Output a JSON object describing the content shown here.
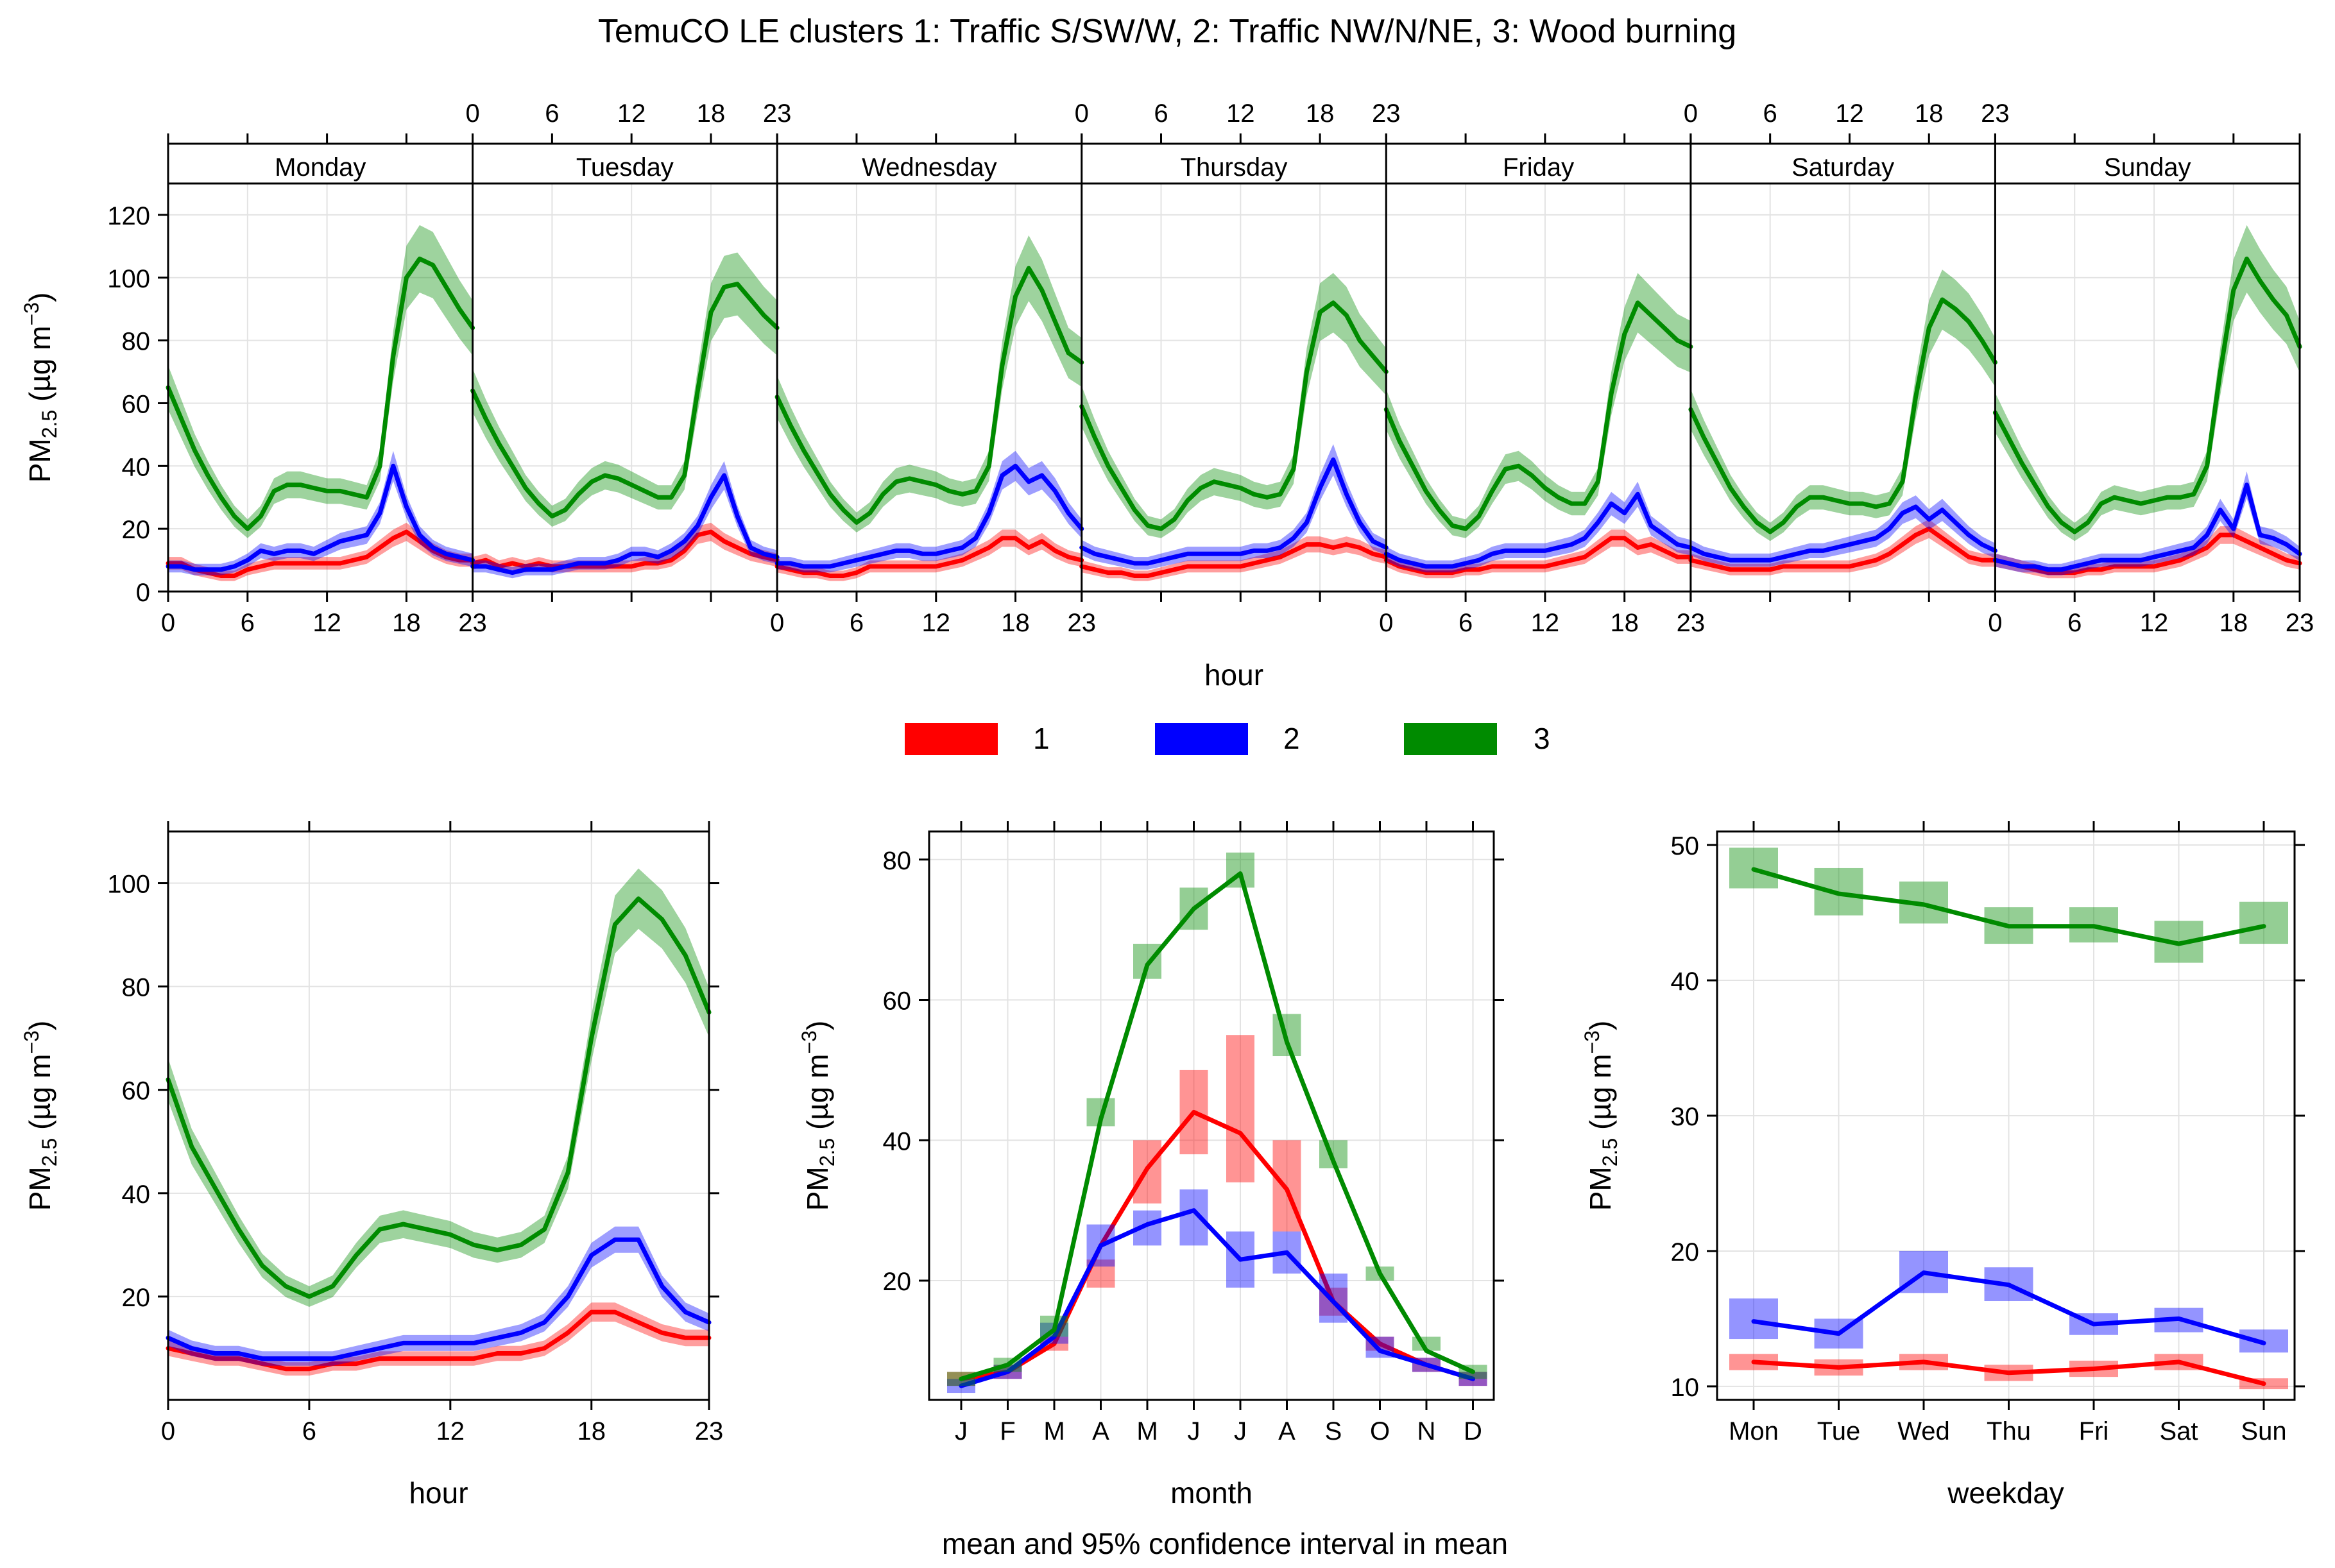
{
  "figure": {
    "title": "TemuCO LE clusters 1: Traffic S/SW/W, 2: Traffic NW/N/NE, 3: Wood burning",
    "footer": "mean and 95% confidence interval in mean",
    "legend": [
      {
        "label": "1",
        "color": "#ff0000"
      },
      {
        "label": "2",
        "color": "#0000ff"
      },
      {
        "label": "3",
        "color": "#008b00"
      }
    ]
  },
  "chart_data": [
    {
      "type": "line",
      "panel": "hour-weekday",
      "xlabel": "hour",
      "ylabel": "PM2.5 (µg m−3)",
      "ylim": [
        0,
        130
      ],
      "yticks": [
        0,
        20,
        40,
        60,
        80,
        100,
        120
      ],
      "xticks": [
        0,
        6,
        12,
        18,
        23
      ],
      "grid": true,
      "ribbons": "95% confidence interval",
      "days": [
        "Monday",
        "Tuesday",
        "Wednesday",
        "Thursday",
        "Friday",
        "Saturday",
        "Sunday"
      ],
      "series": [
        {
          "name": "1",
          "color": "#ff0000",
          "values": [
            [
              9,
              9,
              7,
              6,
              5,
              5,
              7,
              8,
              9,
              9,
              9,
              9,
              9,
              9,
              10,
              11,
              14,
              17,
              19,
              16,
              13,
              11,
              10,
              10
            ],
            [
              9,
              10,
              8,
              9,
              8,
              9,
              8,
              8,
              8,
              8,
              8,
              8,
              8,
              9,
              9,
              10,
              13,
              18,
              19,
              16,
              14,
              12,
              11,
              10
            ],
            [
              8,
              7,
              6,
              6,
              5,
              5,
              6,
              8,
              8,
              8,
              8,
              8,
              8,
              9,
              10,
              12,
              14,
              17,
              17,
              14,
              16,
              13,
              11,
              10
            ],
            [
              8,
              7,
              6,
              6,
              5,
              5,
              6,
              7,
              8,
              8,
              8,
              8,
              8,
              9,
              10,
              11,
              13,
              15,
              15,
              14,
              15,
              14,
              12,
              11
            ],
            [
              10,
              8,
              7,
              6,
              6,
              6,
              7,
              7,
              8,
              8,
              8,
              8,
              8,
              9,
              10,
              11,
              14,
              17,
              17,
              14,
              15,
              13,
              11,
              11
            ],
            [
              10,
              9,
              8,
              7,
              7,
              7,
              7,
              8,
              8,
              8,
              8,
              8,
              8,
              9,
              10,
              12,
              15,
              18,
              20,
              17,
              14,
              11,
              10,
              10
            ],
            [
              10,
              9,
              8,
              7,
              6,
              6,
              6,
              7,
              7,
              8,
              8,
              8,
              8,
              9,
              10,
              12,
              14,
              18,
              18,
              16,
              14,
              12,
              10,
              9
            ]
          ]
        },
        {
          "name": "2",
          "color": "#0000ff",
          "values": [
            [
              8,
              8,
              7,
              7,
              7,
              8,
              10,
              13,
              12,
              13,
              13,
              12,
              14,
              16,
              17,
              18,
              25,
              40,
              27,
              18,
              14,
              12,
              11,
              10
            ],
            [
              8,
              8,
              7,
              6,
              7,
              7,
              7,
              8,
              9,
              9,
              9,
              10,
              12,
              12,
              11,
              13,
              16,
              21,
              30,
              37,
              24,
              14,
              12,
              11
            ],
            [
              9,
              9,
              8,
              8,
              8,
              9,
              10,
              11,
              12,
              13,
              13,
              12,
              12,
              13,
              14,
              17,
              25,
              37,
              40,
              35,
              37,
              32,
              25,
              20
            ],
            [
              14,
              12,
              11,
              10,
              9,
              9,
              10,
              11,
              12,
              12,
              12,
              12,
              12,
              13,
              13,
              14,
              17,
              22,
              33,
              42,
              31,
              22,
              16,
              14
            ],
            [
              12,
              10,
              9,
              8,
              8,
              8,
              9,
              10,
              12,
              13,
              13,
              13,
              13,
              14,
              15,
              17,
              22,
              28,
              25,
              31,
              21,
              18,
              15,
              14
            ],
            [
              14,
              12,
              11,
              10,
              10,
              10,
              10,
              11,
              12,
              13,
              13,
              14,
              15,
              16,
              17,
              20,
              25,
              27,
              23,
              26,
              22,
              18,
              15,
              13
            ],
            [
              10,
              9,
              8,
              8,
              7,
              7,
              8,
              9,
              10,
              10,
              10,
              10,
              11,
              12,
              13,
              14,
              18,
              26,
              20,
              34,
              18,
              17,
              15,
              12
            ]
          ]
        },
        {
          "name": "3",
          "color": "#008b00",
          "values": [
            [
              65,
              55,
              45,
              37,
              30,
              24,
              20,
              24,
              32,
              34,
              34,
              33,
              32,
              32,
              31,
              30,
              40,
              75,
              100,
              106,
              104,
              97,
              90,
              84
            ],
            [
              64,
              55,
              47,
              40,
              33,
              28,
              24,
              26,
              31,
              35,
              37,
              36,
              34,
              32,
              30,
              30,
              37,
              64,
              89,
              97,
              98,
              93,
              88,
              84
            ],
            [
              62,
              53,
              45,
              38,
              31,
              26,
              22,
              25,
              31,
              35,
              36,
              35,
              34,
              32,
              31,
              32,
              40,
              72,
              94,
              103,
              96,
              86,
              76,
              73
            ],
            [
              59,
              49,
              40,
              33,
              26,
              21,
              20,
              23,
              29,
              33,
              35,
              34,
              33,
              31,
              30,
              31,
              39,
              70,
              89,
              92,
              88,
              80,
              75,
              70
            ],
            [
              58,
              48,
              40,
              32,
              26,
              21,
              20,
              24,
              32,
              39,
              40,
              37,
              33,
              30,
              28,
              28,
              35,
              63,
              82,
              92,
              88,
              84,
              80,
              78
            ],
            [
              58,
              49,
              41,
              33,
              27,
              22,
              19,
              22,
              27,
              30,
              30,
              29,
              28,
              28,
              27,
              28,
              35,
              62,
              84,
              93,
              90,
              86,
              80,
              73
            ],
            [
              57,
              49,
              41,
              34,
              27,
              22,
              19,
              22,
              28,
              30,
              29,
              28,
              29,
              30,
              30,
              31,
              40,
              70,
              96,
              106,
              99,
              93,
              88,
              78
            ]
          ]
        }
      ]
    },
    {
      "type": "line",
      "panel": "hour",
      "xlabel": "hour",
      "ylabel": "PM2.5 (µg m−3)",
      "ylim": [
        0,
        110
      ],
      "yticks": [
        20,
        40,
        60,
        80,
        100
      ],
      "xticks": [
        0,
        6,
        12,
        18,
        23
      ],
      "grid": true,
      "x": [
        0,
        1,
        2,
        3,
        4,
        5,
        6,
        7,
        8,
        9,
        10,
        11,
        12,
        13,
        14,
        15,
        16,
        17,
        18,
        19,
        20,
        21,
        22,
        23
      ],
      "series": [
        {
          "name": "1",
          "color": "#ff0000",
          "values": [
            10,
            9,
            8,
            8,
            7,
            6,
            6,
            7,
            7,
            8,
            8,
            8,
            8,
            8,
            9,
            9,
            10,
            13,
            17,
            17,
            15,
            13,
            12,
            12
          ]
        },
        {
          "name": "2",
          "color": "#0000ff",
          "values": [
            12,
            10,
            9,
            9,
            8,
            8,
            8,
            8,
            9,
            10,
            11,
            11,
            11,
            11,
            12,
            13,
            15,
            20,
            28,
            31,
            31,
            22,
            17,
            15
          ]
        },
        {
          "name": "3",
          "color": "#008b00",
          "values": [
            62,
            49,
            41,
            33,
            26,
            22,
            20,
            22,
            28,
            33,
            34,
            33,
            32,
            30,
            29,
            30,
            33,
            44,
            70,
            92,
            97,
            93,
            86,
            75
          ]
        }
      ]
    },
    {
      "type": "line",
      "panel": "month",
      "xlabel": "month",
      "ylabel": "PM2.5 (µg m−3)",
      "ylim": [
        3,
        84
      ],
      "yticks": [
        20,
        40,
        60,
        80
      ],
      "categories": [
        "J",
        "F",
        "M",
        "A",
        "M",
        "J",
        "J",
        "A",
        "S",
        "O",
        "N",
        "D"
      ],
      "grid": true,
      "series": [
        {
          "name": "1",
          "color": "#ff0000",
          "values": [
            6,
            7,
            11,
            25,
            36,
            44,
            41,
            33,
            17,
            11,
            8,
            6
          ],
          "ci": [
            [
              5,
              7
            ],
            [
              6,
              8
            ],
            [
              10,
              12
            ],
            [
              19,
              23
            ],
            [
              31,
              40
            ],
            [
              38,
              50
            ],
            [
              34,
              55
            ],
            [
              27,
              40
            ],
            [
              15,
              19
            ],
            [
              10,
              12
            ],
            [
              7,
              9
            ],
            [
              5,
              7
            ]
          ]
        },
        {
          "name": "2",
          "color": "#0000ff",
          "values": [
            5,
            7,
            12,
            25,
            28,
            30,
            23,
            24,
            17,
            10,
            8,
            6
          ],
          "ci": [
            [
              4,
              6
            ],
            [
              6,
              8
            ],
            [
              11,
              14
            ],
            [
              22,
              28
            ],
            [
              25,
              30
            ],
            [
              25,
              33
            ],
            [
              19,
              27
            ],
            [
              21,
              27
            ],
            [
              14,
              21
            ],
            [
              9,
              12
            ],
            [
              7,
              9
            ],
            [
              5,
              7
            ]
          ]
        },
        {
          "name": "3",
          "color": "#008b00",
          "values": [
            6,
            8,
            13,
            43,
            65,
            73,
            78,
            54,
            37,
            21,
            10,
            7
          ],
          "ci": [
            [
              5,
              7
            ],
            [
              7,
              9
            ],
            [
              12,
              15
            ],
            [
              42,
              46
            ],
            [
              63,
              68
            ],
            [
              70,
              76
            ],
            [
              76,
              81
            ],
            [
              52,
              58
            ],
            [
              36,
              40
            ],
            [
              20,
              22
            ],
            [
              10,
              12
            ],
            [
              6,
              8
            ]
          ]
        }
      ]
    },
    {
      "type": "line",
      "panel": "weekday",
      "xlabel": "weekday",
      "ylabel": "PM2.5 (µg m−3)",
      "ylim": [
        9,
        51
      ],
      "yticks": [
        10,
        20,
        30,
        40,
        50
      ],
      "categories": [
        "Mon",
        "Tue",
        "Wed",
        "Thu",
        "Fri",
        "Sat",
        "Sun"
      ],
      "grid": true,
      "series": [
        {
          "name": "1",
          "color": "#ff0000",
          "values": [
            11.8,
            11.4,
            11.8,
            11.0,
            11.3,
            11.8,
            10.2
          ],
          "ci": [
            [
              11.2,
              12.4
            ],
            [
              10.8,
              12.0
            ],
            [
              11.2,
              12.4
            ],
            [
              10.4,
              11.6
            ],
            [
              10.7,
              11.9
            ],
            [
              11.2,
              12.4
            ],
            [
              9.8,
              10.6
            ]
          ]
        },
        {
          "name": "2",
          "color": "#0000ff",
          "values": [
            14.8,
            13.9,
            18.4,
            17.5,
            14.6,
            15.0,
            13.2
          ],
          "ci": [
            [
              13.5,
              16.5
            ],
            [
              12.8,
              15.0
            ],
            [
              16.9,
              20.0
            ],
            [
              16.3,
              18.8
            ],
            [
              13.8,
              15.4
            ],
            [
              14.0,
              15.8
            ],
            [
              12.5,
              14.2
            ]
          ]
        },
        {
          "name": "3",
          "color": "#008b00",
          "values": [
            48.2,
            46.4,
            45.6,
            44.0,
            44.0,
            42.7,
            44.0
          ],
          "ci": [
            [
              46.8,
              49.8
            ],
            [
              44.8,
              48.3
            ],
            [
              44.2,
              47.3
            ],
            [
              42.7,
              45.4
            ],
            [
              42.8,
              45.4
            ],
            [
              41.3,
              44.4
            ],
            [
              42.7,
              45.8
            ]
          ]
        }
      ]
    }
  ]
}
